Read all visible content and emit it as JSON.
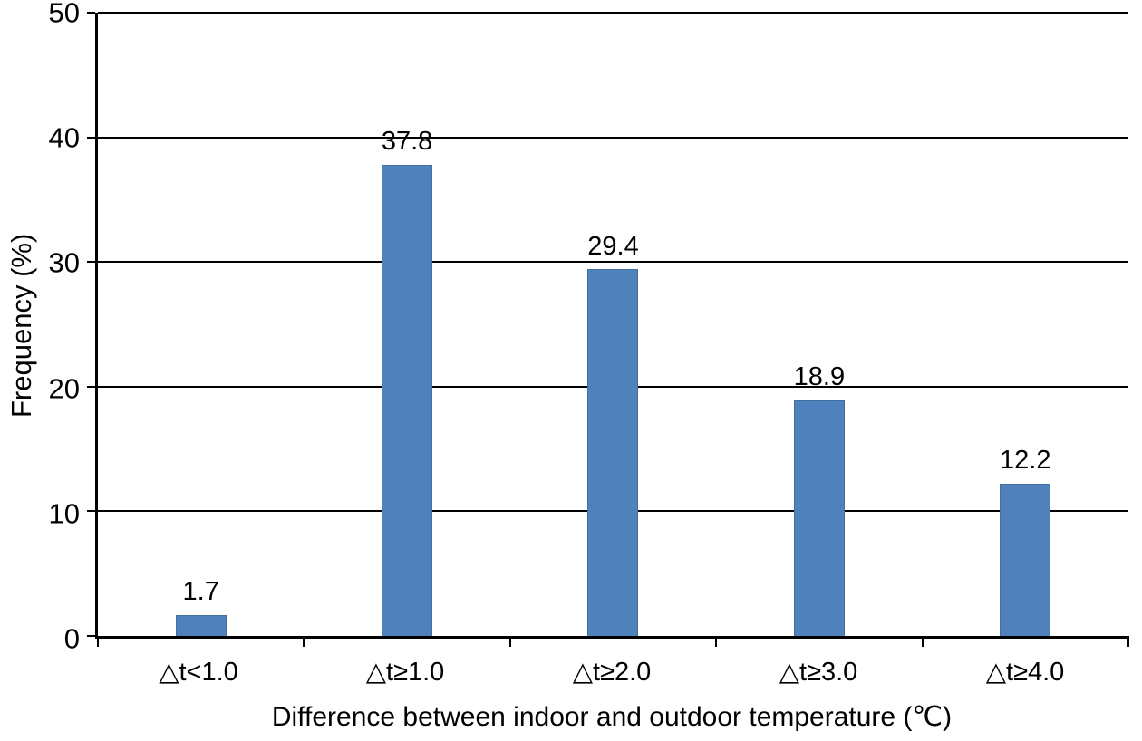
{
  "chart_data": {
    "type": "bar",
    "title": "",
    "xlabel": "Difference between indoor and outdoor temperature (℃)",
    "ylabel": "Frequency (%)",
    "categories": [
      "△t<1.0",
      "△t≥1.0",
      "△t≥2.0",
      "△t≥3.0",
      "△t≥4.0"
    ],
    "values": [
      1.7,
      37.8,
      29.4,
      18.9,
      12.2
    ],
    "value_labels": [
      "1.7",
      "37.8",
      "29.4",
      "18.9",
      "12.2"
    ],
    "ylim": [
      0,
      50
    ],
    "yticks": [
      0,
      10,
      20,
      30,
      40,
      50
    ],
    "grid": "horizontal",
    "legend": "none",
    "bar_color": "#4f81bd",
    "bar_border_color": "#41719c",
    "axis_color": "#000000",
    "gridline_color": "#000000",
    "background_color": "#ffffff"
  }
}
